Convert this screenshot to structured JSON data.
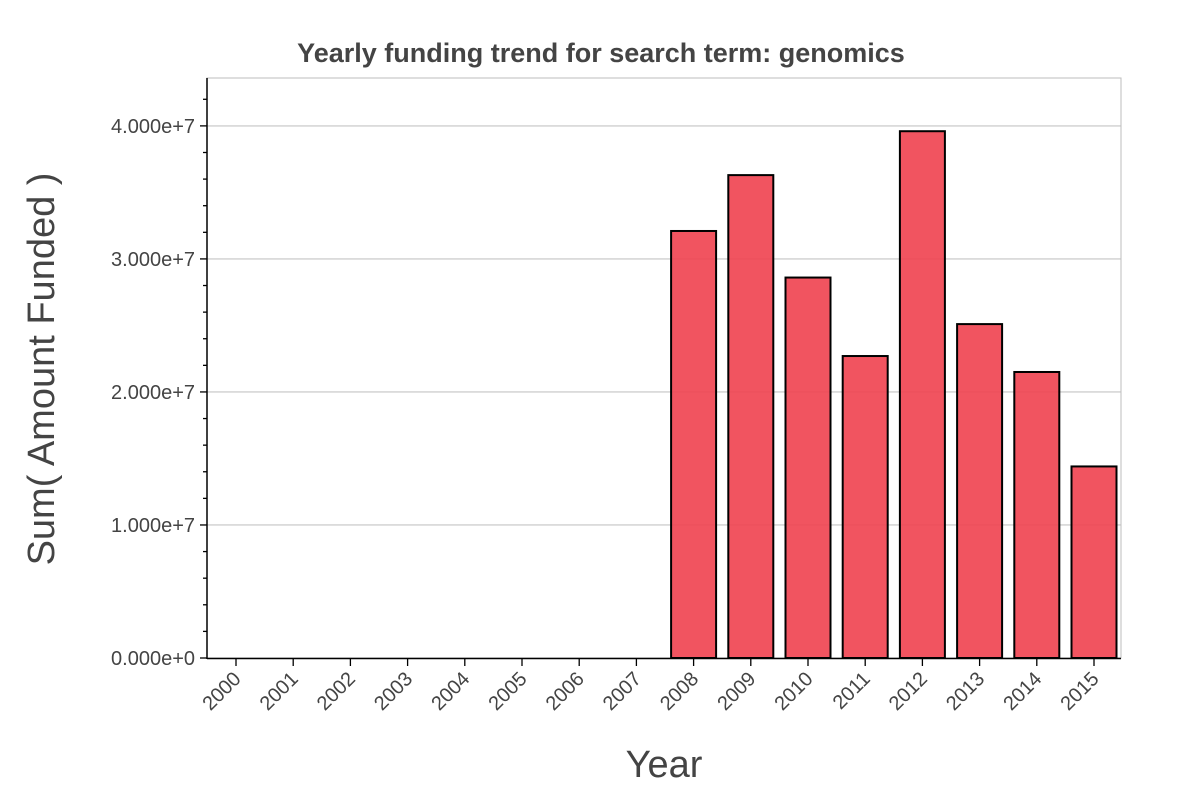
{
  "chart_data": {
    "type": "bar",
    "title": "Yearly funding trend for search term: genomics",
    "xlabel": "Year",
    "ylabel": "Sum( Amount Funded )",
    "categories": [
      "2000",
      "2001",
      "2002",
      "2003",
      "2004",
      "2005",
      "2006",
      "2007",
      "2008",
      "2009",
      "2010",
      "2011",
      "2012",
      "2013",
      "2014",
      "2015"
    ],
    "values": [
      0,
      0,
      0,
      0,
      0,
      0,
      0,
      0,
      32100000,
      36300000,
      28600000,
      22700000,
      39600000,
      25100000,
      21500000,
      14400000
    ],
    "yticks": [
      0,
      10000000,
      20000000,
      30000000,
      40000000
    ],
    "ytick_labels": [
      "0.000e+0",
      "1.000e+7",
      "2.000e+7",
      "3.000e+7",
      "4.000e+7"
    ],
    "ylim": [
      0,
      43600000
    ],
    "grid": "horizontal",
    "legend": "none",
    "bar_color": "#f0414f",
    "edge_color": "#000000"
  }
}
